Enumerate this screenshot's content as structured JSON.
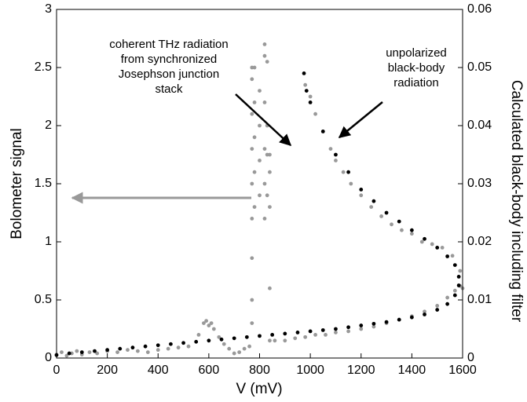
{
  "chart_data": {
    "type": "scatter",
    "xlabel": "V (mV)",
    "ylabel": "Bolometer signal",
    "y2label": "Calculated black-body including filter",
    "xlim": [
      0,
      1600
    ],
    "xticks": [
      0,
      200,
      400,
      600,
      800,
      1000,
      1200,
      1400,
      1600
    ],
    "ylim": [
      0,
      3
    ],
    "yticks": [
      0,
      0.5,
      1,
      1.5,
      2,
      2.5,
      3
    ],
    "y2lim": [
      0,
      0.06
    ],
    "y2ticks": [
      0,
      0.01,
      0.02,
      0.03,
      0.04,
      0.05,
      0.06
    ],
    "annotations": [
      {
        "lines": [
          "coherent THz radiation",
          "from synchronized",
          "Josephson junction",
          "stack"
        ]
      },
      {
        "lines": [
          "unpolarized",
          "black-body",
          "radiation"
        ]
      }
    ],
    "series": [
      {
        "color": "#999999",
        "x": [
          0,
          20,
          40,
          60,
          80,
          100,
          130,
          160,
          200,
          240,
          280,
          320,
          360,
          400,
          440,
          480,
          520,
          560,
          580,
          590,
          600,
          610,
          620,
          640,
          660,
          680,
          700,
          720,
          740,
          760,
          770,
          770,
          770,
          770,
          770,
          770,
          770,
          770,
          770,
          780,
          780,
          780,
          780,
          780,
          800,
          800,
          800,
          800,
          820,
          820,
          820,
          820,
          820,
          820,
          830,
          830,
          830,
          830,
          840,
          840,
          840,
          840,
          840,
          860,
          900,
          940,
          980,
          1020,
          1060,
          1100,
          1150,
          1200,
          1250,
          1300,
          1350,
          1400,
          1450,
          1500,
          1540,
          1570,
          1590,
          980,
          1000,
          1020,
          1050,
          1080,
          1100,
          1130,
          1160,
          1200,
          1240,
          1280,
          1320,
          1360,
          1400,
          1440,
          1480,
          1520,
          1560,
          1590,
          1600
        ],
        "values": [
          0.03,
          0.05,
          0.02,
          0.04,
          0.06,
          0.03,
          0.05,
          0.04,
          0.06,
          0.05,
          0.07,
          0.06,
          0.05,
          0.07,
          0.08,
          0.09,
          0.1,
          0.2,
          0.3,
          0.32,
          0.28,
          0.3,
          0.25,
          0.18,
          0.12,
          0.08,
          0.04,
          0.05,
          0.08,
          0.1,
          0.3,
          0.5,
          0.86,
          1.2,
          1.5,
          1.8,
          2.1,
          2.4,
          2.5,
          1.3,
          1.6,
          1.9,
          2.2,
          2.5,
          1.4,
          1.7,
          2.0,
          2.3,
          1.2,
          1.5,
          1.8,
          2.2,
          2.6,
          2.7,
          1.4,
          1.75,
          2.0,
          2.55,
          1.3,
          1.6,
          1.75,
          0.6,
          0.15,
          0.15,
          0.15,
          0.17,
          0.18,
          0.2,
          0.2,
          0.22,
          0.23,
          0.25,
          0.27,
          0.3,
          0.33,
          0.36,
          0.4,
          0.45,
          0.52,
          0.58,
          0.62,
          2.35,
          2.25,
          2.1,
          1.95,
          1.8,
          1.7,
          1.6,
          1.5,
          1.4,
          1.3,
          1.22,
          1.15,
          1.1,
          1.07,
          1.0,
          0.98,
          0.95,
          0.88,
          0.75,
          0.6
        ]
      },
      {
        "color": "#000000",
        "axis": "y2",
        "x": [
          0,
          50,
          100,
          150,
          200,
          250,
          300,
          350,
          400,
          450,
          500,
          550,
          600,
          650,
          700,
          750,
          800,
          850,
          900,
          950,
          1000,
          1050,
          1100,
          1150,
          1200,
          1250,
          1300,
          1350,
          1400,
          1450,
          1500,
          1540,
          1570,
          1585,
          1585,
          1570,
          1540,
          1500,
          1450,
          1400,
          1350,
          1300,
          1250,
          1200,
          1150,
          1100,
          1050,
          1000,
          985,
          975
        ],
        "values": [
          0.0005,
          0.0008,
          0.001,
          0.0012,
          0.0014,
          0.0016,
          0.0018,
          0.002,
          0.0022,
          0.0024,
          0.0026,
          0.0028,
          0.003,
          0.0032,
          0.0034,
          0.0036,
          0.0038,
          0.004,
          0.0042,
          0.0044,
          0.0046,
          0.0048,
          0.005,
          0.0053,
          0.0056,
          0.0059,
          0.0062,
          0.0066,
          0.007,
          0.0075,
          0.0083,
          0.0093,
          0.0108,
          0.0125,
          0.014,
          0.016,
          0.0175,
          0.019,
          0.0205,
          0.022,
          0.0235,
          0.025,
          0.027,
          0.029,
          0.032,
          0.035,
          0.039,
          0.044,
          0.046,
          0.049
        ]
      }
    ]
  }
}
